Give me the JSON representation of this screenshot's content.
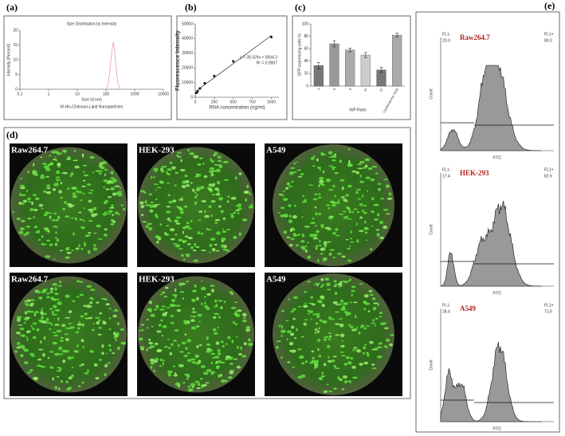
{
  "panel_labels": [
    "(a)",
    "(b)",
    "(c)",
    "(d)",
    "(e)"
  ],
  "chart_data": [
    {
      "type": "line",
      "title": "Size Distribution by Intensity",
      "x_label": "Size (d.nm)",
      "y_label": "Intensity (Percent)",
      "caption": "M-His-Chitosan-Lipid Nanoparticles",
      "log_x": true,
      "color": "#e8a0a0",
      "x": [
        100,
        120,
        140,
        160,
        180,
        200,
        230,
        260,
        300
      ],
      "values": [
        0,
        2,
        7,
        13,
        16,
        13,
        7,
        2,
        0
      ],
      "xlim": [
        0.1,
        10000
      ],
      "xticks": [
        0.1,
        1,
        10,
        100,
        1000,
        10000
      ],
      "ylim": [
        0,
        20
      ],
      "yticks": [
        0,
        5,
        10,
        15,
        20
      ]
    },
    {
      "type": "scatter",
      "x_label": "RNA concentration (ng/ml)",
      "y_label": "Fluorescence Intensity",
      "equation": "y = 39.329x + 5934.3",
      "r_squared": "R² = 0.9907",
      "fit_line": true,
      "color": "#222222",
      "axis_color": "#5b7fc0",
      "x": [
        15,
        31,
        62,
        125,
        250,
        500,
        1000
      ],
      "values": [
        3000,
        4000,
        6000,
        9500,
        14500,
        24500,
        41000
      ],
      "xlim": [
        0,
        1100
      ],
      "xticks": [
        0,
        250,
        500,
        750,
        1000
      ],
      "ylim": [
        0,
        50000
      ],
      "yticks": [
        0,
        10000,
        20000,
        30000,
        40000,
        50000
      ]
    },
    {
      "type": "bar",
      "x_label": "N/P Ratio",
      "y_label": "GFP-expressing cells %",
      "categories": [
        "4",
        "6",
        "8",
        "10",
        "12",
        "Lipofectamine 3000"
      ],
      "values": [
        33,
        68,
        58,
        50,
        26,
        82
      ],
      "errors": [
        5,
        5,
        3,
        4,
        4,
        3
      ],
      "colors": [
        "#777777",
        "#999999",
        "#aaaaaa",
        "#cccccc",
        "#777777",
        "#aaaaaa"
      ],
      "ylim": [
        0,
        100
      ],
      "yticks": [
        0,
        20,
        40,
        60,
        80,
        100
      ]
    }
  ],
  "micrographs": [
    "Raw264.7",
    "HEK-293",
    "A549",
    "Raw264.7",
    "HEK-293",
    "A549"
  ],
  "flow": [
    {
      "cell": "Raw264.7",
      "fl1_minus": "FL1-",
      "fl1_minus_value": "20.0",
      "fl1_plus": "FL1+",
      "fl1_plus_value": "80.0",
      "x_label": "FITC",
      "y_label": "Count"
    },
    {
      "cell": "HEK-293",
      "fl1_minus": "FL1-",
      "fl1_minus_value": "17.4",
      "fl1_plus": "FL1+",
      "fl1_plus_value": "82.6",
      "x_label": "FITC",
      "y_label": "Count"
    },
    {
      "cell": "A549",
      "fl1_minus": "FL1-",
      "fl1_minus_value": "28.4",
      "fl1_plus": "FL1+",
      "fl1_plus_value": "71.6",
      "x_label": "FITC",
      "y_label": "Count"
    }
  ]
}
